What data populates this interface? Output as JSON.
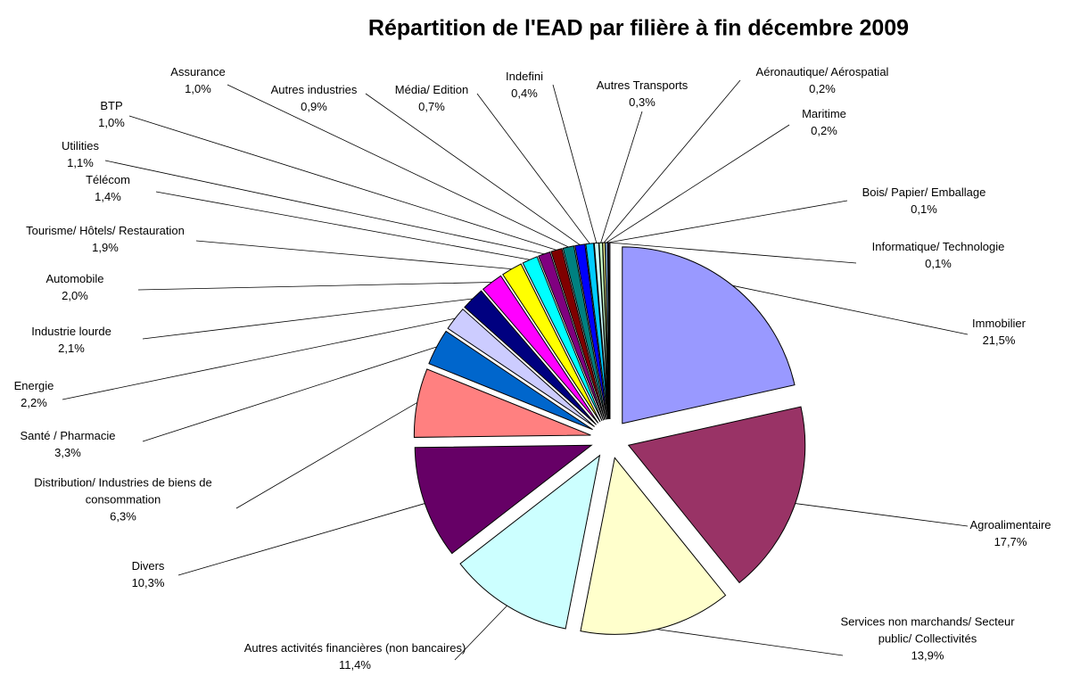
{
  "chart_data": {
    "type": "pie",
    "title": "Répartition de l'EAD par filière à fin décembre 2009",
    "categories": [
      "Immobilier",
      "Agroalimentaire",
      "Services non marchands/ Secteur public/ Collectivités",
      "Autres activités  financières (non bancaires)",
      "Divers",
      "Distribution/ Industries de biens de consommation",
      "Santé / Pharmacie",
      "Energie",
      "Industrie lourde",
      "Automobile",
      "Tourisme/ Hôtels/ Restauration",
      "Télécom",
      "Utilities",
      "BTP",
      "Assurance",
      "Autres industries",
      "Média/ Edition",
      "Indefini",
      "Autres Transports",
      "Aéronautique/ Aérospatial",
      "Maritime",
      "Bois/ Papier/ Emballage",
      "Informatique/ Technologie"
    ],
    "values": [
      21.5,
      17.7,
      13.9,
      11.4,
      10.3,
      6.3,
      3.3,
      2.2,
      2.1,
      2.0,
      1.9,
      1.4,
      1.1,
      1.0,
      1.0,
      0.9,
      0.7,
      0.4,
      0.3,
      0.2,
      0.2,
      0.1,
      0.1
    ],
    "value_labels": [
      "21,5%",
      "17,7%",
      "13,9%",
      "11,4%",
      "10,3%",
      "6,3%",
      "3,3%",
      "2,2%",
      "2,1%",
      "2,0%",
      "1,9%",
      "1,4%",
      "1,1%",
      "1,0%",
      "1,0%",
      "0,9%",
      "0,7%",
      "0,4%",
      "0,3%",
      "0,2%",
      "0,2%",
      "0,1%",
      "0,1%"
    ],
    "colors": [
      "#9999ff",
      "#993366",
      "#ffffcc",
      "#ccffff",
      "#660066",
      "#ff8080",
      "#0066cc",
      "#ccccff",
      "#000080",
      "#ff00ff",
      "#ffff00",
      "#00ffff",
      "#800080",
      "#800000",
      "#008080",
      "#0000ff",
      "#00ccff",
      "#ccffff",
      "#ccffcc",
      "#ffff99",
      "#99ccff",
      "#ff99cc",
      "#cc99ff"
    ]
  }
}
